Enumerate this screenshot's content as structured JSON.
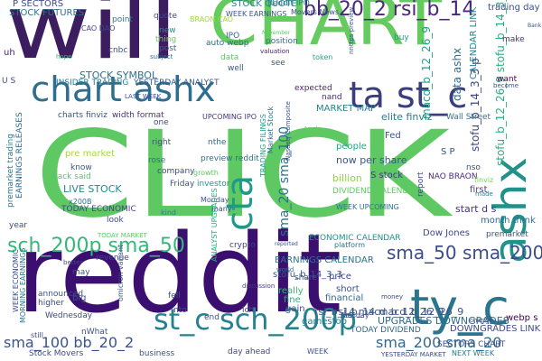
{
  "word_cloud": {
    "background": "#ffffff",
    "words": [
      {
        "text": "CLICK",
        "color": "#5ec962"
      },
      {
        "text": "reddit",
        "color": "#3b0f70"
      },
      {
        "text": "will",
        "color": "#3b1d60"
      },
      {
        "text": "CHART",
        "color": "#65cb5e"
      },
      {
        "text": "chart ashx",
        "color": "#2e6e8e"
      },
      {
        "text": "ta st_c",
        "color": "#3a3d7e"
      },
      {
        "text": "ashx",
        "color": "#21918c"
      },
      {
        "text": "cta",
        "color": "#1f9a8a"
      },
      {
        "text": "ty_c",
        "color": "#2a768e"
      },
      {
        "text": "st_c sch_200p",
        "color": "#26828e"
      },
      {
        "text": "sch_200p sma_50",
        "color": "#35b779"
      },
      {
        "text": "sma_50 sma_200",
        "color": "#3d4d8a"
      },
      {
        "text": "sma_20 sma_100",
        "color": "#2c728e"
      },
      {
        "text": "sma_100 bb_20_2",
        "color": "#3a548c"
      },
      {
        "text": "sma_200 sma_20",
        "color": "#31688e"
      },
      {
        "text": "bb_20_2 rsi_b_14",
        "color": "#482878"
      },
      {
        "text": "stofu_b_12_26_9 stofu_b_14_3_3",
        "color": "#2ab07f"
      },
      {
        "text": "macd_b_12_26_9",
        "color": "#1fa187"
      },
      {
        "text": "rsi_b_14 macd_b_12_26_9",
        "color": "#38598c"
      },
      {
        "text": "stofu_b_14_3_3 p",
        "color": "#3f4788"
      },
      {
        "text": "P SECTORS",
        "color": "#3e4c8a"
      },
      {
        "text": "STOCK FUTURES",
        "color": "#2c738e"
      },
      {
        "text": "billion",
        "color": "#8fd744"
      },
      {
        "text": "LIVE STOCK",
        "color": "#238a8d"
      },
      {
        "text": "STOCK SYMBOL",
        "color": "#2d708e"
      },
      {
        "text": "INSIDER TRADING",
        "color": "#287d8e"
      },
      {
        "text": "YESTERDAY ANALYST",
        "color": "#375a8c"
      },
      {
        "text": "UPCOMING IPO",
        "color": "#443983"
      },
      {
        "text": "WEEK EARNINGS",
        "color": "#39568c"
      },
      {
        "text": "STOCK QUOTE",
        "color": "#26828e"
      },
      {
        "text": "Reddit IPO",
        "color": "#25858e"
      },
      {
        "text": "Movers News",
        "color": "#3c4f8a"
      },
      {
        "text": "trading day",
        "color": "#3d4e8a"
      },
      {
        "text": "Bank",
        "color": "#3b528b"
      },
      {
        "text": "BRAON CAO",
        "color": "#a0da39"
      },
      {
        "text": "CAO DAO",
        "color": "#404688"
      },
      {
        "text": "point",
        "color": "#2a788e"
      },
      {
        "text": "quote",
        "color": "#3e4989"
      },
      {
        "text": "new",
        "color": "#1f948c"
      },
      {
        "text": "thing",
        "color": "#6ccd5a"
      },
      {
        "text": "post",
        "color": "#34618d"
      },
      {
        "text": "IPO",
        "color": "#31688e"
      },
      {
        "text": "auto webp",
        "color": "#2c718e"
      },
      {
        "text": "data",
        "color": "#5ec962"
      },
      {
        "text": "well",
        "color": "#38588c"
      },
      {
        "text": "position",
        "color": "#2d708e"
      },
      {
        "text": "valuation",
        "color": "#481b6d"
      },
      {
        "text": "token",
        "color": "#21a585"
      },
      {
        "text": "make",
        "color": "#46327e"
      },
      {
        "text": "buy",
        "color": "#1e9b8a"
      },
      {
        "text": "see",
        "color": "#3b528b"
      },
      {
        "text": "want",
        "color": "#440154"
      },
      {
        "text": "become",
        "color": "#3b528b"
      },
      {
        "text": "data ashx",
        "color": "#2e6e8e"
      },
      {
        "text": "CALENDAR LINK",
        "color": "#25848e"
      },
      {
        "text": "uh",
        "color": "#482475"
      },
      {
        "text": "cnbc",
        "color": "#3c508b"
      },
      {
        "text": "hope",
        "color": "#35b779"
      },
      {
        "text": "subject",
        "color": "#2d708e"
      },
      {
        "text": "November",
        "color": "#5ec962"
      },
      {
        "text": "nnttps preview",
        "color": "#39558c"
      },
      {
        "text": "Wall Street",
        "color": "#2a778e"
      },
      {
        "text": "expected",
        "color": "#482677"
      },
      {
        "text": "nand",
        "color": "#472c7a"
      },
      {
        "text": "MARKET MAP",
        "color": "#26828e"
      },
      {
        "text": "elite finviz",
        "color": "#287c8e"
      },
      {
        "text": "charts finviz",
        "color": "#3b528b"
      },
      {
        "text": "width format",
        "color": "#46337f"
      },
      {
        "text": "LAST WEEK",
        "color": "#3c4f8a"
      },
      {
        "text": "pre market",
        "color": "#a8db34"
      },
      {
        "text": "premarket trading",
        "color": "#2a788e"
      },
      {
        "text": "EARNINGS RELEASES",
        "color": "#2f6b8e"
      },
      {
        "text": "right",
        "color": "#3e4a89"
      },
      {
        "text": "one",
        "color": "#3f4788"
      },
      {
        "text": "nthe",
        "color": "#2e6d8e"
      },
      {
        "text": "preview reddit",
        "color": "#2d708e"
      },
      {
        "text": "Market Stock",
        "color": "#2c728e"
      },
      {
        "text": "TRADING FILINGS",
        "color": "#1fa088"
      },
      {
        "text": "Nasdaq Composite",
        "color": "#3c508b"
      },
      {
        "text": "people",
        "color": "#22a884"
      },
      {
        "text": "Fed",
        "color": "#3a548c"
      },
      {
        "text": "S P",
        "color": "#3b528b"
      },
      {
        "text": "nso",
        "color": "#3e4a89"
      },
      {
        "text": "NAO BRAON",
        "color": "#472d7b"
      },
      {
        "text": "first",
        "color": "#433e85"
      },
      {
        "text": "start d s",
        "color": "#46307e"
      },
      {
        "text": "month think",
        "color": "#2e6e8e"
      },
      {
        "text": "premarket",
        "color": "#3b528b"
      },
      {
        "text": "Dow Jones",
        "color": "#3e4989"
      },
      {
        "text": "made",
        "color": "#27808e"
      },
      {
        "text": "finviz",
        "color": "#7ad151"
      },
      {
        "text": "now per share",
        "color": "#39568c"
      },
      {
        "text": "S stock",
        "color": "#453882"
      },
      {
        "text": "DIVIDEND CALENDAR",
        "color": "#5ec962"
      },
      {
        "text": "WEEK UPCOMING",
        "color": "#2b748e"
      },
      {
        "text": "report",
        "color": "#3e4a89"
      },
      {
        "text": "ECONOMIC CALENDAR",
        "color": "#20928c"
      },
      {
        "text": "platform",
        "color": "#2c728e"
      },
      {
        "text": "reported",
        "color": "#3b528b"
      },
      {
        "text": "crypto",
        "color": "#433d84"
      },
      {
        "text": "investor",
        "color": "#1f998a"
      },
      {
        "text": "company",
        "color": "#3e4a89"
      },
      {
        "text": "growth",
        "color": "#5ec962"
      },
      {
        "text": "x200B",
        "color": "#2f6c8e"
      },
      {
        "text": "TODAY ECONOMIC",
        "color": "#404588"
      },
      {
        "text": "TODAY MARKET",
        "color": "#5ec962"
      },
      {
        "text": "Monday",
        "color": "#3b528b"
      },
      {
        "text": "many",
        "color": "#3e4989"
      },
      {
        "text": "kind",
        "color": "#27808e"
      },
      {
        "text": "look",
        "color": "#3e4c8a"
      },
      {
        "text": "know",
        "color": "#3b528b"
      },
      {
        "text": "back said",
        "color": "#56c667"
      },
      {
        "text": "rose",
        "color": "#2e6f8e"
      },
      {
        "text": "Friday",
        "color": "#3b528b"
      },
      {
        "text": "year",
        "color": "#3e4989"
      },
      {
        "text": "revenue",
        "color": "#404688"
      },
      {
        "text": "EARNINGS CALENDAR",
        "color": "#2d708e"
      },
      {
        "text": "stofu_b_14_3_3",
        "color": "#3b528b"
      },
      {
        "text": "ANALYST UPGRADES",
        "color": "#29af7f"
      },
      {
        "text": "discussion",
        "color": "#433e85"
      },
      {
        "text": "share",
        "color": "#3b528b"
      },
      {
        "text": "price",
        "color": "#3e4989"
      },
      {
        "text": "short",
        "color": "#3b528b"
      },
      {
        "text": "financial",
        "color": "#31688e"
      },
      {
        "text": "money",
        "color": "#3e4989"
      },
      {
        "text": "rsi_b_14 macd_b_12_26_9",
        "color": "#3b528b"
      },
      {
        "text": "UPGRADES DOWNGRADES",
        "color": "#2f6b8e"
      },
      {
        "text": "really",
        "color": "#37b878"
      },
      {
        "text": "fine",
        "color": "#29af7f"
      },
      {
        "text": "gain",
        "color": "#3b528b"
      },
      {
        "text": "gamestop",
        "color": "#287c8e"
      },
      {
        "text": "Tuesday",
        "color": "#3e4989"
      },
      {
        "text": "TODAY DIVIDEND",
        "color": "#31688e"
      },
      {
        "text": "DOWNGRADES LINK",
        "color": "#3e4989"
      },
      {
        "text": "NEXT WEEK",
        "color": "#2a788e"
      },
      {
        "text": "SECTORS CHART",
        "color": "#3b528b"
      },
      {
        "text": "webp s",
        "color": "#440154"
      },
      {
        "text": "change",
        "color": "#3e4989"
      },
      {
        "text": "announced",
        "color": "#3b528b"
      },
      {
        "text": "higher",
        "color": "#3e4989"
      },
      {
        "text": "big",
        "color": "#3b528b"
      },
      {
        "text": "Wednesday",
        "color": "#3e4989"
      },
      {
        "text": "WEEK ECONOMIC",
        "color": "#3b528b"
      },
      {
        "text": "MORNING EARNINGS",
        "color": "#2a788e"
      },
      {
        "text": "better",
        "color": "#3e4989"
      },
      {
        "text": "fell",
        "color": "#3b528b"
      },
      {
        "text": "nto",
        "color": "#3e4989"
      },
      {
        "text": "end",
        "color": "#3b528b"
      },
      {
        "text": "ich",
        "color": "#3e4989"
      },
      {
        "text": "omicron variant",
        "color": "#3b528b"
      },
      {
        "text": "still",
        "color": "#3e4989"
      },
      {
        "text": "nWhat",
        "color": "#3b528b"
      },
      {
        "text": "Stock Movers",
        "color": "#3e4989"
      },
      {
        "text": "business",
        "color": "#3b528b"
      },
      {
        "text": "day ahead",
        "color": "#3e4989"
      },
      {
        "text": "WEEK",
        "color": "#3b528b"
      },
      {
        "text": "YESTERDAY MARKET",
        "color": "#3e4989"
      },
      {
        "text": "may",
        "color": "#3b528b"
      },
      {
        "text": "Apple",
        "color": "#5ec962"
      },
      {
        "text": "world",
        "color": "#2a788e"
      },
      {
        "text": "U S",
        "color": "#3e4989"
      }
    ]
  }
}
